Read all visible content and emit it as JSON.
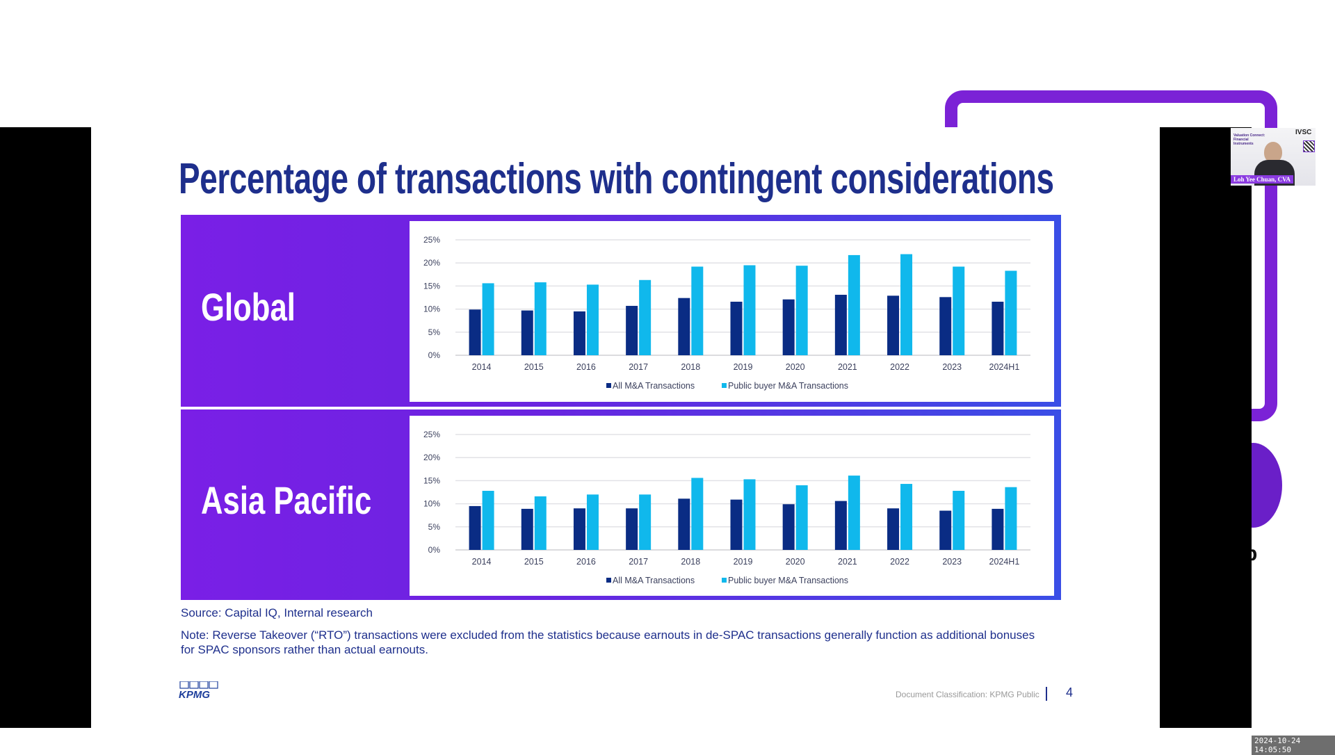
{
  "slide": {
    "title": "Percentage of transactions with contingent considerations",
    "source": "Source: Capital IQ, Internal research",
    "note": "Note: Reverse Takeover (“RTO”) transactions were excluded from the statistics because earnouts in de-SPAC transactions generally function as additional bonuses for SPAC sponsors rather than actual earnouts.",
    "logo": "KPMG",
    "classification": "Document Classification: KPMG Public",
    "page_number": "4",
    "panels": [
      {
        "label": "Global"
      },
      {
        "label": "Asia Pacific"
      }
    ]
  },
  "webcam": {
    "speaker": "Loh Yee Chuan, CVA",
    "slide_heading": "Valuation Connect: Financial Instruments",
    "logos": "IVSC"
  },
  "background": {
    "letter": "p"
  },
  "timestamp": "2024-10-24 14:05:50",
  "colors": {
    "all": "#0a2c84",
    "public": "#10b8ec",
    "title": "#1e2f8c",
    "panel_purple": "#7a1fe6",
    "panel_blue": "#3a4ee6"
  },
  "chart_data": [
    {
      "type": "bar",
      "panel": "Global",
      "categories": [
        "2014",
        "2015",
        "2016",
        "2017",
        "2018",
        "2019",
        "2020",
        "2021",
        "2022",
        "2023",
        "2024H1"
      ],
      "series": [
        {
          "name": "All M&A Transactions",
          "values": [
            9.9,
            9.7,
            9.5,
            10.7,
            12.4,
            11.6,
            12.1,
            13.1,
            12.9,
            12.6,
            11.6
          ]
        },
        {
          "name": "Public buyer M&A Transactions",
          "values": [
            15.6,
            15.8,
            15.3,
            16.3,
            19.2,
            19.5,
            19.4,
            21.7,
            21.9,
            19.2,
            18.3
          ]
        }
      ],
      "yticks": [
        "0%",
        "5%",
        "10%",
        "15%",
        "20%",
        "25%"
      ],
      "ylim": [
        0,
        25
      ],
      "grid": true,
      "legend": "bottom"
    },
    {
      "type": "bar",
      "panel": "Asia Pacific",
      "categories": [
        "2014",
        "2015",
        "2016",
        "2017",
        "2018",
        "2019",
        "2020",
        "2021",
        "2022",
        "2023",
        "2024H1"
      ],
      "series": [
        {
          "name": "All M&A Transactions",
          "values": [
            9.5,
            8.9,
            9.0,
            9.0,
            11.1,
            10.9,
            9.9,
            10.6,
            9.0,
            8.5,
            8.9
          ]
        },
        {
          "name": "Public buyer M&A Transactions",
          "values": [
            12.8,
            11.6,
            12.0,
            12.0,
            15.6,
            15.3,
            14.0,
            16.1,
            14.3,
            12.8,
            13.6
          ]
        }
      ],
      "yticks": [
        "0%",
        "5%",
        "10%",
        "15%",
        "20%",
        "25%"
      ],
      "ylim": [
        0,
        25
      ],
      "grid": true,
      "legend": "bottom"
    }
  ]
}
